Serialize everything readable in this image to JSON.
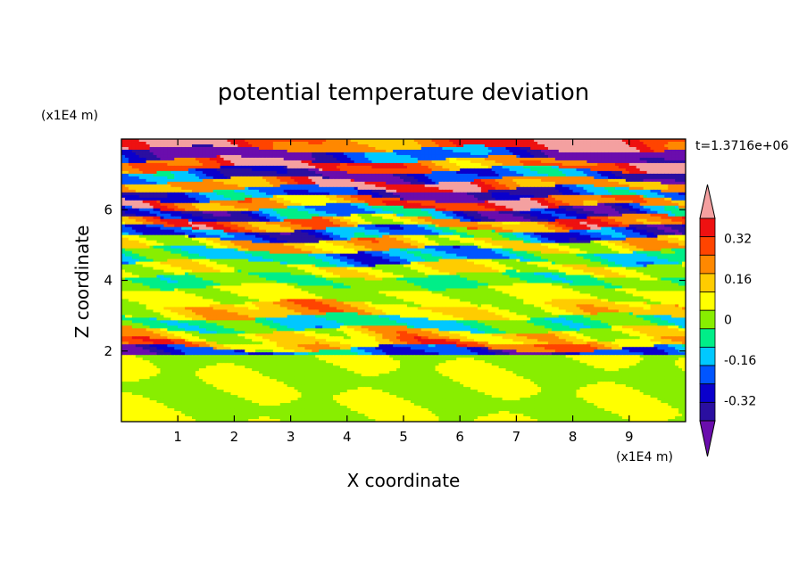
{
  "chart_data": {
    "type": "heatmap",
    "title": "potential temperature deviation",
    "xlabel": "X coordinate",
    "ylabel": "Z coordinate",
    "x_unit": "(x1E4 m)",
    "y_unit": "(x1E4 m)",
    "time_label": "t=1.3716e+06",
    "xlim": [
      0,
      10
    ],
    "ylim": [
      0,
      8
    ],
    "x_ticks": [
      "1",
      "2",
      "3",
      "4",
      "5",
      "6",
      "7",
      "8",
      "9"
    ],
    "y_ticks": [
      "2",
      "4",
      "6"
    ],
    "colorbar": {
      "levels": [
        -0.48,
        -0.4,
        -0.32,
        -0.24,
        -0.16,
        -0.08,
        0,
        0.08,
        0.16,
        0.24,
        0.32,
        0.4,
        0.48
      ],
      "labels": [
        "0.32",
        "0.16",
        "0",
        "-0.16",
        "-0.32"
      ],
      "label_values": [
        0.32,
        0.16,
        0,
        -0.16,
        -0.32
      ],
      "colors": [
        "#6a0dad",
        "#2a0fa0",
        "#0a00cc",
        "#0055ff",
        "#00c8ff",
        "#00ee88",
        "#88ee00",
        "#ffff00",
        "#ffcc00",
        "#ff8800",
        "#ff4400",
        "#ee1111",
        "#f4a0a0"
      ]
    },
    "layers": [
      {
        "z": 0.9,
        "v": 0.04,
        "amp": 0.06
      },
      {
        "z": 1.6,
        "v": 0.02,
        "amp": 0.06
      },
      {
        "z": 2.0,
        "v": -0.36,
        "amp": 0.1
      },
      {
        "z": 2.15,
        "v": 0.3,
        "amp": 0.1
      },
      {
        "z": 2.4,
        "v": 0.18,
        "amp": 0.1
      },
      {
        "z": 2.8,
        "v": -0.12,
        "amp": 0.08
      },
      {
        "z": 3.1,
        "v": 0.2,
        "amp": 0.08
      },
      {
        "z": 3.6,
        "v": 0.06,
        "amp": 0.05
      },
      {
        "z": 4.0,
        "v": -0.06,
        "amp": 0.06
      },
      {
        "z": 4.3,
        "v": 0.1,
        "amp": 0.08
      },
      {
        "z": 4.7,
        "v": -0.2,
        "amp": 0.1
      },
      {
        "z": 5.0,
        "v": 0.18,
        "amp": 0.1
      },
      {
        "z": 5.35,
        "v": -0.3,
        "amp": 0.12
      },
      {
        "z": 5.6,
        "v": 0.3,
        "amp": 0.12
      },
      {
        "z": 5.9,
        "v": -0.36,
        "amp": 0.12
      },
      {
        "z": 6.2,
        "v": 0.38,
        "amp": 0.1
      },
      {
        "z": 6.45,
        "v": -0.44,
        "amp": 0.08
      },
      {
        "z": 6.7,
        "v": 0.44,
        "amp": 0.08
      },
      {
        "z": 7.0,
        "v": -0.44,
        "amp": 0.08
      },
      {
        "z": 7.25,
        "v": 0.44,
        "amp": 0.08
      },
      {
        "z": 7.55,
        "v": -0.46,
        "amp": 0.06
      },
      {
        "z": 7.85,
        "v": 0.46,
        "amp": 0.06
      }
    ]
  }
}
